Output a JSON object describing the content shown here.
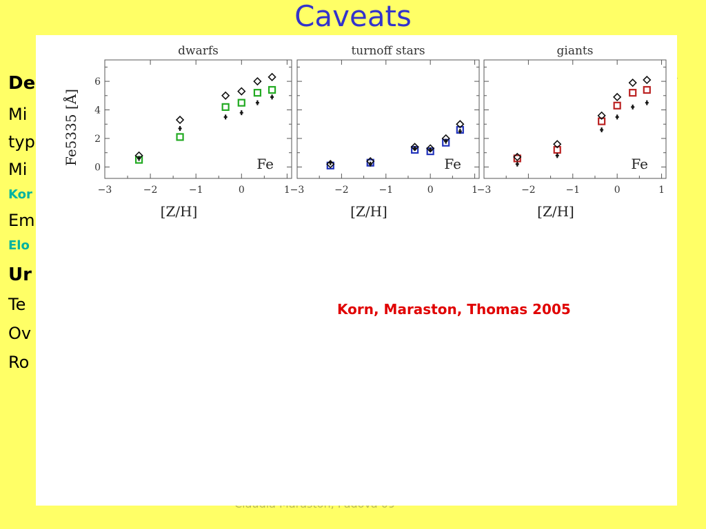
{
  "slide": {
    "title": "Caveats",
    "background_color": "#ffff66",
    "background_lines": [
      "De",
      "Mi",
      "typ",
      "Mi",
      "Kor",
      "Em",
      "Elo",
      "Ur",
      "Te",
      "Ov",
      "Ro"
    ],
    "background_right": "y",
    "footer": "Claudia Maraston, Padova 09"
  },
  "credit": "Korn, Maraston, Thomas 2005",
  "chart_data": [
    {
      "type": "scatter",
      "title": "dwarfs",
      "xlabel": "[Z/H]",
      "ylabel": "Fe5335 [Å]",
      "annotation": "Fe",
      "xlim": [
        -3,
        1.1
      ],
      "ylim": [
        -0.8,
        7.5
      ],
      "xticks": [
        -3,
        -2,
        -1,
        0,
        1
      ],
      "yticks": [
        0,
        2,
        4,
        6
      ],
      "color": "#22aa22",
      "series": [
        {
          "marker": "square",
          "x": [
            -2.25,
            -1.35,
            -0.35,
            0,
            0.35,
            0.67
          ],
          "y": [
            0.5,
            2.1,
            4.2,
            4.5,
            5.2,
            5.4
          ]
        },
        {
          "marker": "diamond",
          "x": [
            -2.25,
            -1.35,
            -0.35,
            0,
            0.35,
            0.67
          ],
          "y": [
            0.8,
            3.3,
            5.0,
            5.3,
            6.0,
            6.3
          ]
        },
        {
          "marker": "plus",
          "x": [
            -2.25,
            -1.35,
            -0.35,
            0,
            0.35,
            0.67
          ],
          "y": [
            0.6,
            2.7,
            3.5,
            3.8,
            4.5,
            4.9
          ]
        }
      ]
    },
    {
      "type": "scatter",
      "title": "turnoff stars",
      "xlabel": "[Z/H]",
      "ylabel": "",
      "annotation": "Fe",
      "xlim": [
        -3,
        1.1
      ],
      "ylim": [
        -0.8,
        7.5
      ],
      "xticks": [
        -3,
        -2,
        -1,
        0,
        1
      ],
      "yticks": [
        0,
        2,
        4,
        6
      ],
      "color": "#2233bb",
      "series": [
        {
          "marker": "square",
          "x": [
            -2.25,
            -1.35,
            -0.35,
            0,
            0.35,
            0.67
          ],
          "y": [
            0.1,
            0.3,
            1.2,
            1.1,
            1.7,
            2.6
          ]
        },
        {
          "marker": "diamond",
          "x": [
            -2.25,
            -1.35,
            -0.35,
            0,
            0.35,
            0.67
          ],
          "y": [
            0.2,
            0.4,
            1.4,
            1.3,
            2.0,
            3.0
          ]
        },
        {
          "marker": "plus",
          "x": [
            -2.25,
            -1.35,
            -0.35,
            0,
            0.35,
            0.67
          ],
          "y": [
            0.3,
            0.2,
            1.3,
            1.2,
            1.8,
            2.5
          ]
        }
      ]
    },
    {
      "type": "scatter",
      "title": "giants",
      "xlabel": "[Z/H]",
      "ylabel": "",
      "annotation": "Fe",
      "xlim": [
        -3,
        1.1
      ],
      "ylim": [
        -0.8,
        7.5
      ],
      "xticks": [
        -3,
        -2,
        -1,
        0,
        1
      ],
      "yticks": [
        0,
        2,
        4,
        6
      ],
      "color": "#bb2222",
      "series": [
        {
          "marker": "square",
          "x": [
            -2.25,
            -1.35,
            -0.35,
            0,
            0.35,
            0.67
          ],
          "y": [
            0.6,
            1.2,
            3.2,
            4.3,
            5.2,
            5.4
          ]
        },
        {
          "marker": "diamond",
          "x": [
            -2.25,
            -1.35,
            -0.35,
            0,
            0.35,
            0.67
          ],
          "y": [
            0.7,
            1.6,
            3.6,
            4.9,
            5.9,
            6.1
          ]
        },
        {
          "marker": "plus",
          "x": [
            -2.25,
            -1.35,
            -0.35,
            0,
            0.35,
            0.67
          ],
          "y": [
            0.2,
            0.8,
            2.6,
            3.5,
            4.2,
            4.5
          ]
        }
      ]
    }
  ]
}
